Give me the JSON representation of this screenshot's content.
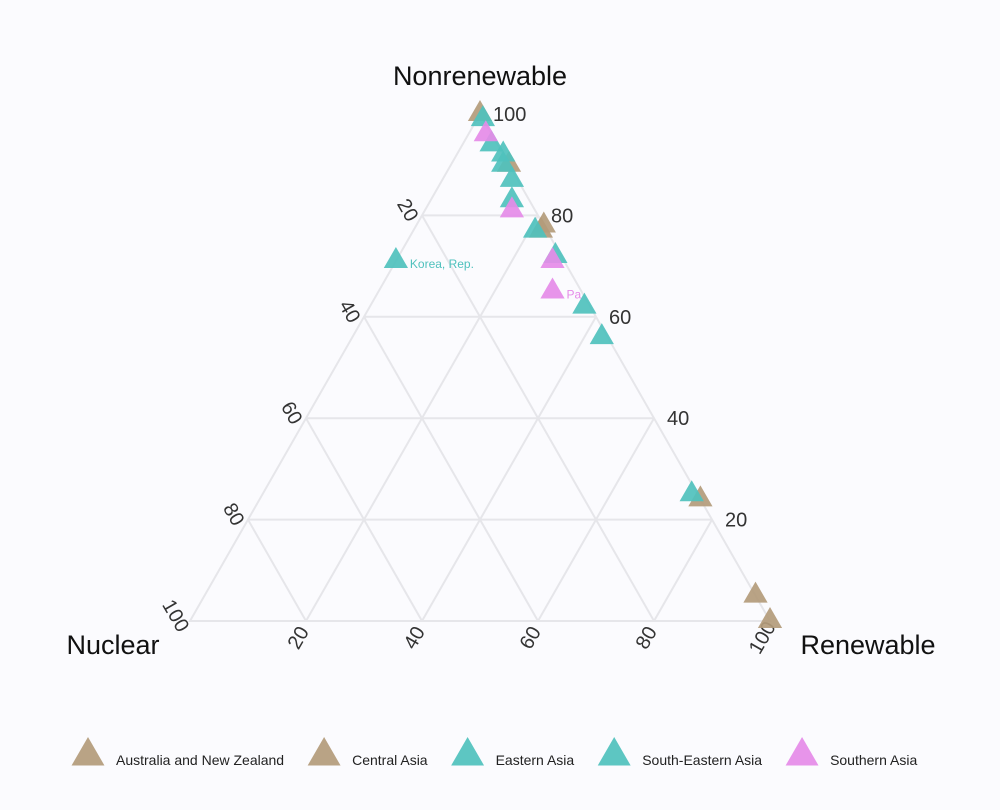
{
  "chart_data": {
    "type": "ternary-scatter",
    "axes": {
      "top": "Nonrenewable",
      "left": "Nuclear",
      "right": "Renewable"
    },
    "ticks": [
      20,
      40,
      60,
      80,
      100
    ],
    "grid": true,
    "legend_position": "bottom",
    "series": [
      {
        "name": "Australia and New Zealand",
        "color": "#b39b7b",
        "points": [
          {
            "nonrenewable": 78,
            "renewable": 22,
            "nuclear": 0
          },
          {
            "nonrenewable": 24,
            "renewable": 76,
            "nuclear": 0
          }
        ]
      },
      {
        "name": "Central Asia",
        "color": "#b39b7b",
        "points": [
          {
            "nonrenewable": 100,
            "renewable": 0,
            "nuclear": 0
          },
          {
            "nonrenewable": 90,
            "renewable": 10,
            "nuclear": 0
          },
          {
            "nonrenewable": 77,
            "renewable": 22,
            "nuclear": 1
          },
          {
            "nonrenewable": 5,
            "renewable": 95,
            "nuclear": 0
          },
          {
            "nonrenewable": 0,
            "renewable": 100,
            "nuclear": 0
          }
        ]
      },
      {
        "name": "Eastern Asia",
        "color": "#4fc1bd",
        "points": [
          {
            "nonrenewable": 71,
            "renewable": 0,
            "nuclear": 29,
            "label": "Korea, Rep."
          },
          {
            "nonrenewable": 99,
            "renewable": 1,
            "nuclear": 0
          },
          {
            "nonrenewable": 92,
            "renewable": 8,
            "nuclear": 0
          },
          {
            "nonrenewable": 25,
            "renewable": 74,
            "nuclear": 1
          }
        ]
      },
      {
        "name": "South-Eastern Asia",
        "color": "#4fc1bd",
        "points": [
          {
            "nonrenewable": 94,
            "renewable": 5,
            "nuclear": 1
          },
          {
            "nonrenewable": 90,
            "renewable": 9,
            "nuclear": 1
          },
          {
            "nonrenewable": 87,
            "renewable": 12,
            "nuclear": 1
          },
          {
            "nonrenewable": 83,
            "renewable": 14,
            "nuclear": 3
          },
          {
            "nonrenewable": 77,
            "renewable": 21,
            "nuclear": 2
          },
          {
            "nonrenewable": 72,
            "renewable": 27,
            "nuclear": 1
          },
          {
            "nonrenewable": 62,
            "renewable": 37,
            "nuclear": 1
          },
          {
            "nonrenewable": 56,
            "renewable": 43,
            "nuclear": 1
          }
        ]
      },
      {
        "name": "Southern Asia",
        "color": "#e58be8",
        "points": [
          {
            "nonrenewable": 96,
            "renewable": 3,
            "nuclear": 1
          },
          {
            "nonrenewable": 81,
            "renewable": 15,
            "nuclear": 4
          },
          {
            "nonrenewable": 71,
            "renewable": 27,
            "nuclear": 2
          },
          {
            "nonrenewable": 65,
            "renewable": 30,
            "nuclear": 5,
            "label": "Pa"
          }
        ]
      }
    ]
  }
}
